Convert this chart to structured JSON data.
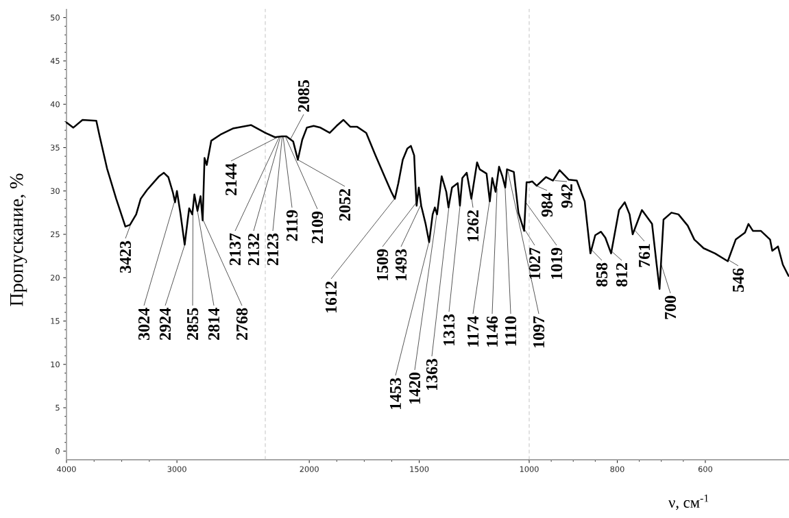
{
  "chart_data": [
    {
      "type": "line",
      "ylabel": "Пропускание, %",
      "xlim": [
        4000,
        2200
      ],
      "ylim": [
        -1,
        51
      ],
      "xticks": [
        4000,
        3000
      ],
      "yticks": [
        0,
        5,
        10,
        15,
        20,
        25,
        30,
        35,
        40,
        45,
        50
      ],
      "series": [
        {
          "color": "#000000",
          "x": [
            4000,
            3939,
            3855,
            3730,
            3703,
            3633,
            3550,
            3467,
            3425,
            3369,
            3328,
            3272,
            3217,
            3161,
            3119,
            3078,
            3036,
            3017,
            3000,
            2967,
            2930,
            2906,
            2889,
            2861,
            2842,
            2814,
            2786,
            2767,
            2750,
            2730,
            2689,
            2606,
            2494,
            2328,
            2200
          ],
          "values": [
            37.9,
            37.3,
            38.2,
            38.1,
            36.5,
            32.6,
            29.1,
            25.9,
            26.1,
            27.3,
            29.1,
            30.1,
            30.9,
            31.7,
            32.1,
            31.6,
            29.8,
            28.7,
            30.0,
            27.3,
            23.8,
            26.3,
            28.0,
            27.3,
            29.6,
            27.7,
            29.4,
            26.6,
            33.8,
            33.0,
            35.8,
            36.5,
            37.2,
            37.6,
            36.7
          ]
        }
      ],
      "annotations": [
        {
          "text": "3423",
          "x": 3423,
          "y": 26.0
        },
        {
          "text": "3024",
          "x": 3024,
          "y": 28.7
        },
        {
          "text": "2924",
          "x": 2924,
          "y": 24.0
        },
        {
          "text": "2855",
          "x": 2855,
          "y": 27.5
        },
        {
          "text": "2814",
          "x": 2814,
          "y": 27.7
        },
        {
          "text": "2768",
          "x": 2768,
          "y": 26.8
        }
      ]
    },
    {
      "type": "line",
      "xlim": [
        2200,
        1000
      ],
      "ylim": [
        -1,
        51
      ],
      "xticks": [
        2000,
        1500
      ],
      "tick_labels": "x",
      "ref_lines": [
        {
          "axis": "x",
          "value": 2200,
          "color": "#b4b4b4",
          "line_style": "dashed"
        }
      ],
      "series": [
        {
          "color": "#000000",
          "x": [
            2200,
            2156,
            2125,
            2104,
            2073,
            2052,
            2032,
            2011,
            1980,
            1949,
            1907,
            1876,
            1845,
            1813,
            1782,
            1741,
            1699,
            1658,
            1627,
            1611,
            1595,
            1575,
            1554,
            1538,
            1523,
            1517,
            1512,
            1502,
            1491,
            1471,
            1455,
            1439,
            1429,
            1419,
            1398,
            1377,
            1367,
            1351,
            1325,
            1315,
            1304,
            1284,
            1263,
            1237,
            1225,
            1194,
            1179,
            1168,
            1153,
            1137,
            1122,
            1109,
            1101,
            1070,
            1049,
            1023,
            1012,
            1000
          ],
          "values": [
            36.7,
            36.2,
            36.3,
            36.3,
            35.7,
            33.6,
            35.9,
            37.3,
            37.5,
            37.3,
            36.7,
            37.5,
            38.2,
            37.4,
            37.4,
            36.7,
            34.1,
            31.7,
            29.9,
            29.1,
            30.9,
            33.6,
            34.9,
            35.2,
            34.1,
            30.7,
            28.3,
            30.4,
            28.3,
            26.2,
            24.1,
            27.3,
            28.1,
            27.3,
            31.7,
            29.9,
            28.1,
            30.4,
            30.9,
            28.3,
            31.5,
            32.1,
            29.1,
            33.3,
            32.5,
            32.0,
            28.8,
            31.5,
            29.9,
            32.8,
            31.7,
            30.4,
            32.5,
            32.2,
            27.5,
            25.4,
            31.0,
            31.0
          ]
        }
      ],
      "annotations": [
        {
          "text": "2144",
          "x": 2144,
          "y": 36.2
        },
        {
          "text": "2137",
          "x": 2137,
          "y": 36.2
        },
        {
          "text": "2132",
          "x": 2132,
          "y": 36.2
        },
        {
          "text": "2123",
          "x": 2123,
          "y": 36.3
        },
        {
          "text": "2119",
          "x": 2119,
          "y": 36.3
        },
        {
          "text": "2109",
          "x": 2109,
          "y": 36.3
        },
        {
          "text": "2085",
          "x": 2085,
          "y": 36.0
        },
        {
          "text": "2052",
          "x": 2052,
          "y": 33.6
        },
        {
          "text": "1612",
          "x": 1612,
          "y": 29.1
        },
        {
          "text": "1509",
          "x": 1509,
          "y": 28.8
        },
        {
          "text": "1493",
          "x": 1493,
          "y": 28.4
        },
        {
          "text": "1453",
          "x": 1453,
          "y": 24.4
        },
        {
          "text": "1420",
          "x": 1420,
          "y": 27.4
        },
        {
          "text": "1363",
          "x": 1363,
          "y": 28.6
        },
        {
          "text": "1313",
          "x": 1313,
          "y": 28.7
        },
        {
          "text": "1262",
          "x": 1262,
          "y": 29.2
        },
        {
          "text": "1174",
          "x": 1174,
          "y": 29.9
        },
        {
          "text": "1146",
          "x": 1146,
          "y": 30.3
        },
        {
          "text": "1110",
          "x": 1110,
          "y": 30.6
        },
        {
          "text": "1097",
          "x": 1097,
          "y": 32.3
        },
        {
          "text": "1027",
          "x": 1027,
          "y": 25.8
        },
        {
          "text": "1019",
          "x": 1019,
          "y": 28.8
        }
      ]
    },
    {
      "type": "line",
      "xlabel": "ν, см$^{-1}$",
      "xlim": [
        1000,
        410
      ],
      "ylim": [
        -1,
        51
      ],
      "xticks": [
        1000,
        800,
        600
      ],
      "tick_labels": "x",
      "ref_lines": [
        {
          "axis": "x",
          "value": 1000,
          "color": "#b4b4b4",
          "line_style": "dashed"
        }
      ],
      "series": [
        {
          "color": "#000000",
          "x": [
            1000,
            993,
            983,
            962,
            946,
            931,
            910,
            892,
            874,
            861,
            850,
            837,
            827,
            814,
            796,
            783,
            772,
            765,
            744,
            721,
            711,
            704,
            695,
            677,
            661,
            640,
            625,
            604,
            578,
            549,
            531,
            510,
            502,
            492,
            474,
            453,
            448,
            435,
            424,
            411
          ],
          "values": [
            31.0,
            31.1,
            30.6,
            31.6,
            31.2,
            32.4,
            31.3,
            31.2,
            28.8,
            22.8,
            24.9,
            25.3,
            24.6,
            22.8,
            27.8,
            28.7,
            27.3,
            25.0,
            27.8,
            26.2,
            21.7,
            18.7,
            26.7,
            27.5,
            27.3,
            26.0,
            24.4,
            23.4,
            22.8,
            21.9,
            24.4,
            25.2,
            26.2,
            25.4,
            25.4,
            24.4,
            23.1,
            23.6,
            21.5,
            20.2
          ]
        }
      ],
      "annotations": [
        {
          "text": "984",
          "x": 984,
          "y": 30.6
        },
        {
          "text": "942",
          "x": 942,
          "y": 31.2
        },
        {
          "text": "858",
          "x": 858,
          "y": 23.2
        },
        {
          "text": "812",
          "x": 812,
          "y": 23.0
        },
        {
          "text": "761",
          "x": 761,
          "y": 25.5
        },
        {
          "text": "700",
          "x": 700,
          "y": 21.5
        },
        {
          "text": "546",
          "x": 546,
          "y": 22.0
        }
      ]
    }
  ]
}
